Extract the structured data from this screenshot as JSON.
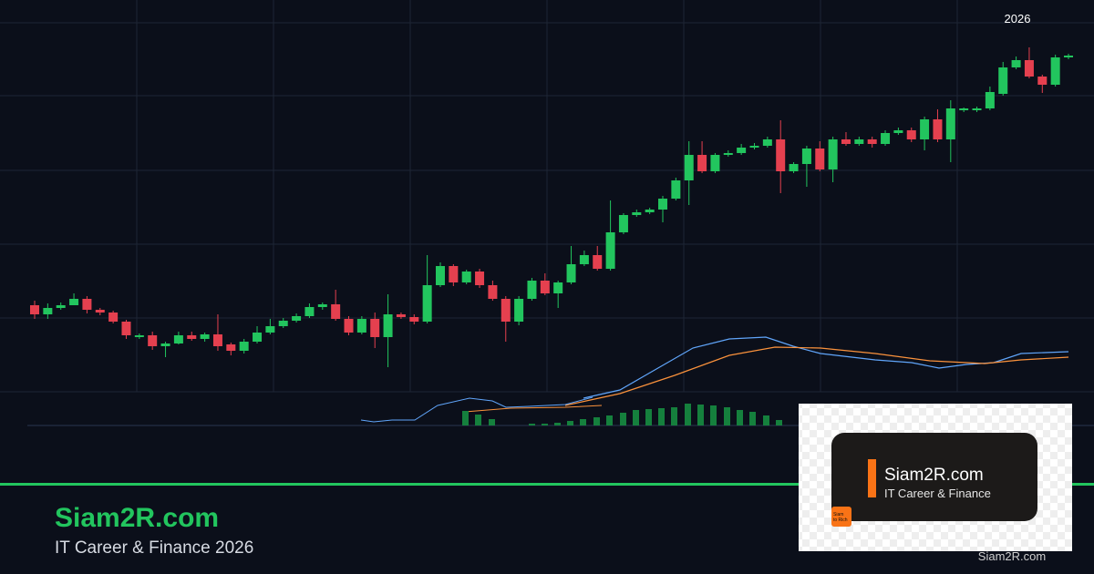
{
  "chart_data": {
    "type": "candlestick",
    "year_label": "2026",
    "ylim": [
      0,
      440
    ],
    "up_color": "#22c55e",
    "down_color": "#e5404f",
    "open": [
      105,
      95,
      102,
      105,
      112,
      100,
      97,
      87,
      70,
      72,
      60,
      63,
      72,
      68,
      73,
      62,
      55,
      65,
      75,
      82,
      88,
      93,
      103,
      106,
      90,
      75,
      90,
      70,
      95,
      92,
      87,
      127,
      148,
      130,
      142,
      127,
      112,
      87,
      112,
      132,
      118,
      130,
      150,
      160,
      145,
      185,
      204,
      207,
      210,
      222,
      242,
      270,
      252,
      270,
      272,
      278,
      280,
      287,
      252,
      260,
      277,
      254,
      287,
      282,
      287,
      282,
      294,
      297,
      287,
      309,
      287,
      319,
      319,
      321,
      337,
      366,
      374,
      356,
      347,
      377
    ],
    "close": [
      95,
      102,
      105,
      112,
      100,
      97,
      87,
      72,
      72,
      60,
      63,
      72,
      68,
      73,
      60,
      55,
      65,
      75,
      82,
      88,
      93,
      103,
      106,
      90,
      75,
      90,
      70,
      95,
      92,
      87,
      127,
      148,
      130,
      142,
      127,
      112,
      87,
      112,
      132,
      118,
      130,
      150,
      160,
      145,
      185,
      204,
      207,
      210,
      222,
      242,
      270,
      252,
      270,
      272,
      278,
      280,
      287,
      252,
      260,
      277,
      254,
      287,
      282,
      287,
      282,
      294,
      297,
      287,
      309,
      287,
      321,
      321,
      321,
      339,
      366,
      374,
      356,
      347,
      377,
      379
    ],
    "high": [
      110,
      107,
      108,
      118,
      115,
      102,
      99,
      89,
      74,
      76,
      65,
      76,
      76,
      75,
      95,
      64,
      68,
      82,
      90,
      91,
      96,
      107,
      108,
      122,
      93,
      93,
      97,
      117,
      97,
      95,
      160,
      152,
      150,
      144,
      145,
      132,
      115,
      115,
      135,
      140,
      132,
      170,
      165,
      170,
      220,
      206,
      210,
      212,
      225,
      245,
      285,
      285,
      272,
      275,
      282,
      283,
      290,
      308,
      262,
      280,
      285,
      290,
      295,
      290,
      290,
      297,
      300,
      300,
      312,
      320,
      330,
      322,
      323,
      345,
      372,
      378,
      388,
      358,
      380,
      381
    ],
    "low": [
      90,
      90,
      100,
      108,
      96,
      94,
      85,
      68,
      68,
      56,
      48,
      62,
      66,
      65,
      55,
      50,
      52,
      63,
      73,
      80,
      86,
      91,
      100,
      88,
      72,
      73,
      58,
      37,
      90,
      84,
      85,
      125,
      126,
      128,
      124,
      110,
      65,
      83,
      110,
      116,
      102,
      128,
      148,
      143,
      143,
      183,
      202,
      205,
      196,
      220,
      215,
      250,
      250,
      268,
      270,
      276,
      278,
      228,
      250,
      235,
      252,
      240,
      280,
      280,
      278,
      280,
      292,
      284,
      275,
      284,
      262,
      317,
      317,
      319,
      335,
      364,
      354,
      338,
      345,
      375
    ]
  },
  "brand": {
    "title": "Siam2R.com",
    "subtitle": "IT Career & Finance 2026"
  },
  "logo": {
    "title": "Siam2R.com",
    "subtitle": "IT Career & Finance",
    "badge_line1": "Siam",
    "badge_line2": "to Rich"
  },
  "footer": "Siam2R.com"
}
